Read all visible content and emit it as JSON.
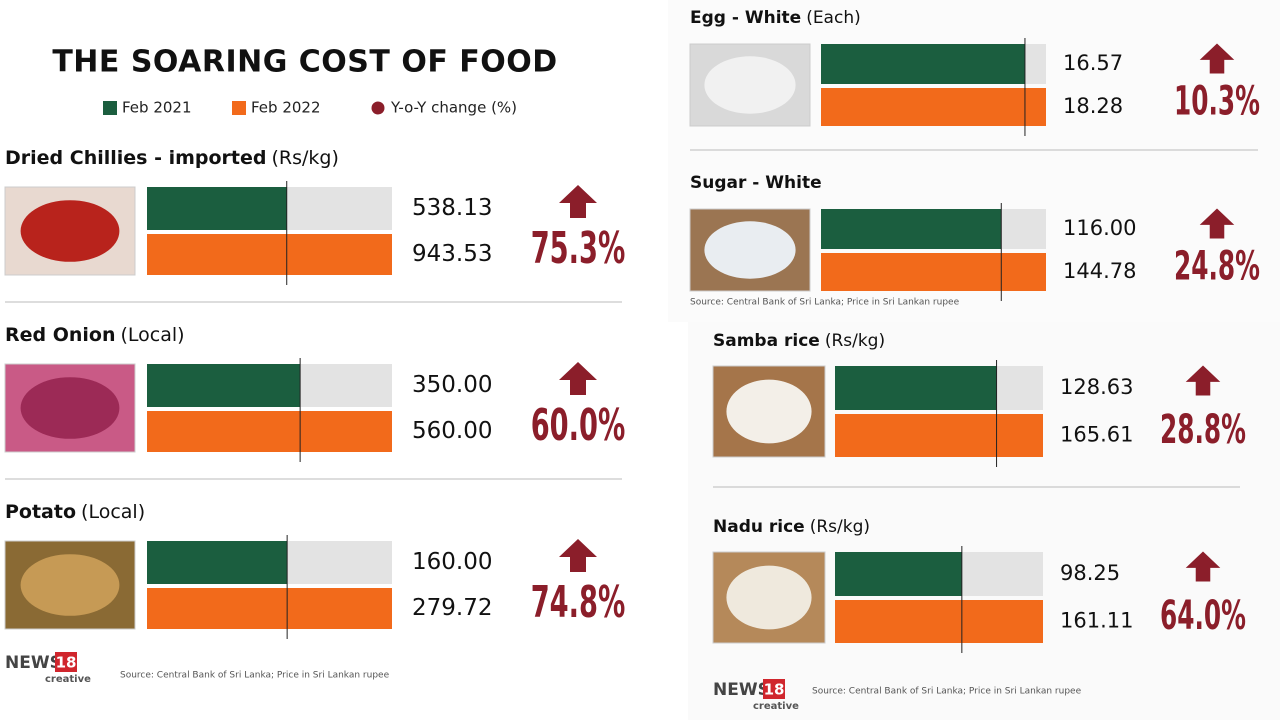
{
  "title": "THE SOARING COST OF FOOD",
  "legend": [
    {
      "name": "Feb 2021",
      "color": "#1b5e3f"
    },
    {
      "name": "Feb 2022",
      "color": "#f26a1b"
    },
    {
      "name": "Y-o-Y change (%)",
      "color": "#8b1e2a"
    }
  ],
  "panels": [
    {
      "items": [
        {
          "name": "Dried Chillies - imported",
          "unit": "(Rs/kg)",
          "feb2021": 538.13,
          "feb2021_label": "538.13",
          "feb2022": 943.53,
          "feb2022_label": "943.53",
          "change": 75.3,
          "change_label": "75.3%"
        },
        {
          "name": "Red Onion",
          "unit": "(Local)",
          "feb2021": 350,
          "feb2021_label": "350.00",
          "feb2022": 560,
          "feb2022_label": "560.00",
          "change": 60,
          "change_label": "60.0%"
        },
        {
          "name": "Potato",
          "unit": "(Local)",
          "feb2021": 160,
          "feb2021_label": "160.00",
          "feb2022": 279.72,
          "feb2022_label": "279.72",
          "change": 74.8,
          "change_label": "74.8%"
        }
      ],
      "source": "Source: Central Bank of Sri Lanka; Price in Sri Lankan rupee",
      "logo": {
        "name": "NEWS",
        "number": "18",
        "tag": "creative"
      }
    },
    {
      "items": [
        {
          "name": "Egg - White",
          "unit": "(Each)",
          "feb2021": 16.57,
          "feb2021_label": "16.57",
          "feb2022": 18.28,
          "feb2022_label": "18.28",
          "change": 10.3,
          "change_label": "10.3%"
        },
        {
          "name": "Sugar - White",
          "feb2021": 116,
          "feb2021_label": "116.00",
          "feb2022": 144.78,
          "feb2022_label": "144.78",
          "change": 24.8,
          "change_label": "24.8%"
        }
      ],
      "source": "Source: Central Bank of Sri Lanka; Price in Sri Lankan rupee"
    },
    {
      "items": [
        {
          "name": "Samba rice",
          "unit": "(Rs/kg)",
          "feb2021": 128.63,
          "feb2021_label": "128.63",
          "feb2022": 165.61,
          "feb2022_label": "165.61",
          "change": 28.8,
          "change_label": "28.8%"
        },
        {
          "name": "Nadu rice",
          "unit": "(Rs/kg)",
          "feb2021": 98.25,
          "feb2021_label": "98.25",
          "feb2022": 161.11,
          "feb2022_label": "161.11",
          "change": 64,
          "change_label": "64.0%"
        }
      ],
      "source": "Source: Central Bank of Sri Lanka; Price in Sri Lankan rupee",
      "logo": {
        "name": "NEWS",
        "number": "18",
        "tag": "creative"
      }
    }
  ]
}
